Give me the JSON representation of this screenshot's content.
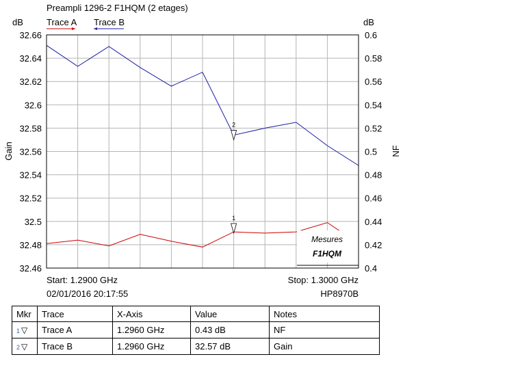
{
  "chart_data": {
    "type": "line",
    "title": "Preampli 1296-2  F1HQM (2 etages)",
    "legend": [
      {
        "name": "Trace A",
        "color": "#cc0000"
      },
      {
        "name": "Trace B",
        "color": "#1a1aa6"
      }
    ],
    "left_axis": {
      "label": "Gain",
      "unit": "dB",
      "min": 32.46,
      "max": 32.66,
      "ticks": [
        "32.66",
        "32.64",
        "32.62",
        "32.6",
        "32.58",
        "32.56",
        "32.54",
        "32.52",
        "32.5",
        "32.48",
        "32.46"
      ]
    },
    "right_axis": {
      "label": "NF",
      "unit": "dB",
      "min": 0.4,
      "max": 0.6,
      "ticks": [
        "0.6",
        "0.58",
        "0.56",
        "0.54",
        "0.52",
        "0.5",
        "0.48",
        "0.46",
        "0.44",
        "0.42",
        "0.4"
      ]
    },
    "x_axis": {
      "min": 1.29,
      "max": 1.3,
      "start_label": "Start: 1.2900 GHz",
      "stop_label": "Stop: 1.3000 GHz"
    },
    "x_gridlines": 10,
    "series": [
      {
        "name": "Trace B",
        "axis": "left",
        "color": "#1a1aa6",
        "x": [
          1.29,
          1.291,
          1.292,
          1.293,
          1.294,
          1.295,
          1.296,
          1.297,
          1.298,
          1.299,
          1.3
        ],
        "values": [
          32.651,
          32.633,
          32.65,
          32.632,
          32.616,
          32.628,
          32.574,
          32.58,
          32.585,
          32.565,
          32.548
        ]
      },
      {
        "name": "Trace A",
        "axis": "right",
        "color": "#cc0000",
        "x": [
          1.29,
          1.291,
          1.292,
          1.293,
          1.294,
          1.295,
          1.296,
          1.297,
          1.298,
          1.299,
          1.2995
        ],
        "values": [
          0.421,
          0.424,
          0.419,
          0.429,
          0.423,
          0.418,
          0.431,
          0.43,
          0.431,
          0.439,
          0.43
        ]
      }
    ],
    "markers": [
      {
        "label": "1",
        "x": 1.296,
        "value": 0.43,
        "axis": "right"
      },
      {
        "label": "2",
        "x": 1.296,
        "value": 32.57,
        "axis": "left"
      }
    ],
    "annotation": {
      "line1": "Mesures",
      "line2": "F1HQM"
    },
    "date": "02/01/2016 20:17:55",
    "instrument": "HP8970B"
  },
  "table": {
    "headers": [
      "Mkr",
      "Trace",
      "X-Axis",
      "Value",
      "Notes"
    ],
    "rows": [
      {
        "mkr": "1",
        "trace": "Trace A",
        "x": "1.2960 GHz",
        "value": "0.43 dB",
        "notes": "NF"
      },
      {
        "mkr": "2",
        "trace": "Trace B",
        "x": "1.2960 GHz",
        "value": "32.57 dB",
        "notes": "Gain"
      }
    ]
  }
}
